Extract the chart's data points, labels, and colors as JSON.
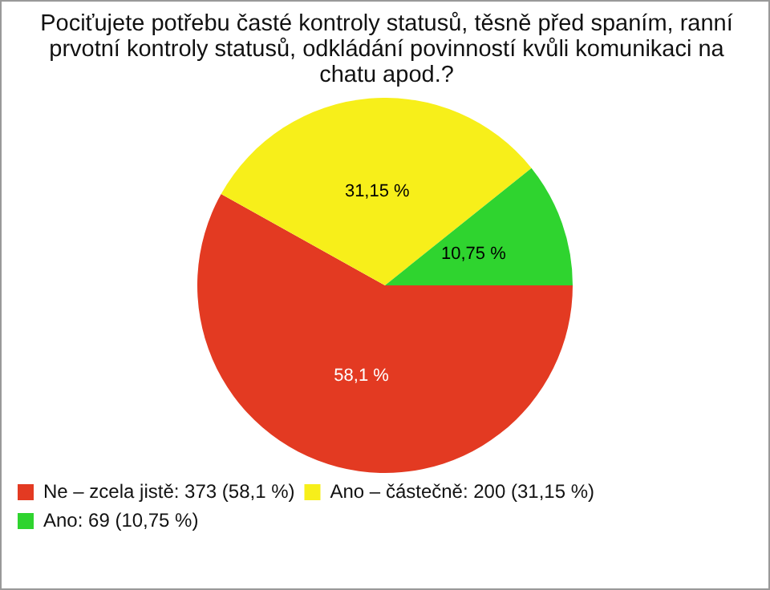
{
  "chart_data": {
    "type": "pie",
    "title": "Pociťujete potřebu časté kontroly statusů, těsně před spaním, ranní prvotní kontroly statusů, odkládání povinností kvůli komunikaci na chatu apod.?",
    "categories": [
      "Ne – zcela jistě: 373 (58,1 %)",
      "Ano – částečně: 200 (31,15 %)",
      "Ano: 69 (10,75 %)"
    ],
    "values": [
      58.1,
      31.15,
      10.75
    ],
    "colors": [
      "#e33a22",
      "#f7ef1a",
      "#2fd42f"
    ],
    "value_labels": [
      "58,1 %",
      "31,15 %",
      "10,75 %"
    ],
    "legend": "bottom left"
  }
}
